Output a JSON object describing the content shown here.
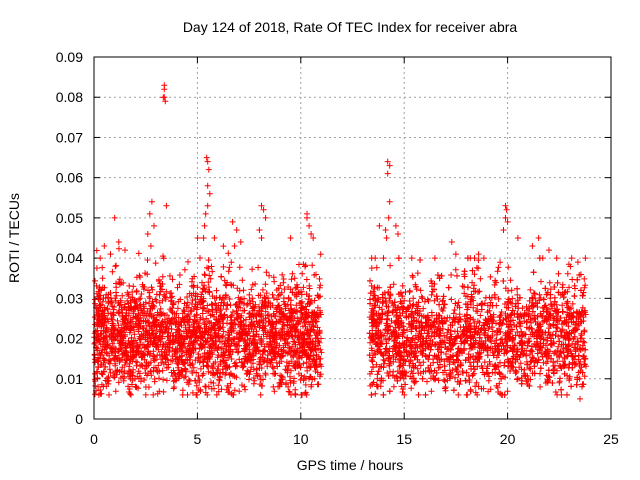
{
  "chart_data": {
    "type": "scatter",
    "title": "Day 124 of 2018, Rate Of TEC Index for receiver abra",
    "xlabel": "GPS time / hours",
    "ylabel": "ROTI / TECUs",
    "xlim": [
      0,
      25
    ],
    "ylim": [
      0,
      0.09
    ],
    "x_ticks": [
      0,
      5,
      10,
      15,
      20,
      25
    ],
    "x_tick_labels": [
      "0",
      "5",
      "10",
      "15",
      "20",
      "25"
    ],
    "y_ticks": [
      0,
      0.01,
      0.02,
      0.03,
      0.04,
      0.05,
      0.06,
      0.07,
      0.08,
      0.09
    ],
    "y_tick_labels": [
      "0",
      "0.01",
      "0.02",
      "0.03",
      "0.04",
      "0.05",
      "0.06",
      "0.07",
      "0.08",
      "0.09"
    ],
    "grid": true,
    "marker": "plus",
    "color": "#ff0000",
    "segments": [
      {
        "x_range": [
          0.0,
          11.0
        ],
        "y_range": [
          0.006,
          0.045
        ],
        "y_center": 0.02
      },
      {
        "x_range": [
          13.3,
          23.8
        ],
        "y_range": [
          0.006,
          0.04
        ],
        "y_center": 0.02
      }
    ],
    "points": [
      [
        3.4,
        0.083
      ],
      [
        3.4,
        0.082
      ],
      [
        3.4,
        0.08
      ],
      [
        3.45,
        0.079
      ],
      [
        3.35,
        0.08
      ],
      [
        3.5,
        0.053
      ],
      [
        2.8,
        0.054
      ],
      [
        2.7,
        0.051
      ],
      [
        2.9,
        0.048
      ],
      [
        2.6,
        0.046
      ],
      [
        2.75,
        0.043
      ],
      [
        5.45,
        0.065
      ],
      [
        5.5,
        0.064
      ],
      [
        5.55,
        0.062
      ],
      [
        5.5,
        0.058
      ],
      [
        5.6,
        0.056
      ],
      [
        5.5,
        0.053
      ],
      [
        5.4,
        0.051
      ],
      [
        5.35,
        0.048
      ],
      [
        5.3,
        0.045
      ],
      [
        0.5,
        0.043
      ],
      [
        1.0,
        0.05
      ],
      [
        1.2,
        0.044
      ],
      [
        1.5,
        0.042
      ],
      [
        0.3,
        0.04
      ],
      [
        0.8,
        0.041
      ],
      [
        6.7,
        0.049
      ],
      [
        6.9,
        0.047
      ],
      [
        7.1,
        0.044
      ],
      [
        6.8,
        0.043
      ],
      [
        8.1,
        0.053
      ],
      [
        8.2,
        0.052
      ],
      [
        8.3,
        0.05
      ],
      [
        8.0,
        0.047
      ],
      [
        8.1,
        0.045
      ],
      [
        10.3,
        0.051
      ],
      [
        10.3,
        0.05
      ],
      [
        10.4,
        0.048
      ],
      [
        10.5,
        0.046
      ],
      [
        10.6,
        0.045
      ],
      [
        14.2,
        0.064
      ],
      [
        14.3,
        0.063
      ],
      [
        14.2,
        0.061
      ],
      [
        14.3,
        0.054
      ],
      [
        14.25,
        0.05
      ],
      [
        14.1,
        0.047
      ],
      [
        14.15,
        0.045
      ],
      [
        13.8,
        0.048
      ],
      [
        14.0,
        0.04
      ],
      [
        13.6,
        0.04
      ],
      [
        14.6,
        0.048
      ],
      [
        14.7,
        0.046
      ],
      [
        17.3,
        0.044
      ],
      [
        17.5,
        0.041
      ],
      [
        17.9,
        0.036
      ],
      [
        18.4,
        0.04
      ],
      [
        18.6,
        0.041
      ],
      [
        19.9,
        0.053
      ],
      [
        19.95,
        0.052
      ],
      [
        19.9,
        0.05
      ],
      [
        20.0,
        0.049
      ],
      [
        19.8,
        0.047
      ],
      [
        20.5,
        0.045
      ],
      [
        21.2,
        0.043
      ],
      [
        21.5,
        0.045
      ],
      [
        22.0,
        0.042
      ],
      [
        21.7,
        0.04
      ],
      [
        23.1,
        0.04
      ],
      [
        23.4,
        0.039
      ],
      [
        0.1,
        0.007
      ],
      [
        0.2,
        0.008
      ],
      [
        2.0,
        0.008
      ],
      [
        4.0,
        0.01
      ],
      [
        6.0,
        0.012
      ],
      [
        8.9,
        0.008
      ],
      [
        9.5,
        0.009
      ],
      [
        10.5,
        0.008
      ],
      [
        13.7,
        0.01
      ],
      [
        14.5,
        0.008
      ],
      [
        15.5,
        0.009
      ],
      [
        17.0,
        0.007
      ],
      [
        18.5,
        0.009
      ],
      [
        20.5,
        0.01
      ],
      [
        22.5,
        0.009
      ],
      [
        23.5,
        0.005
      ],
      [
        23.6,
        0.008
      ]
    ]
  }
}
